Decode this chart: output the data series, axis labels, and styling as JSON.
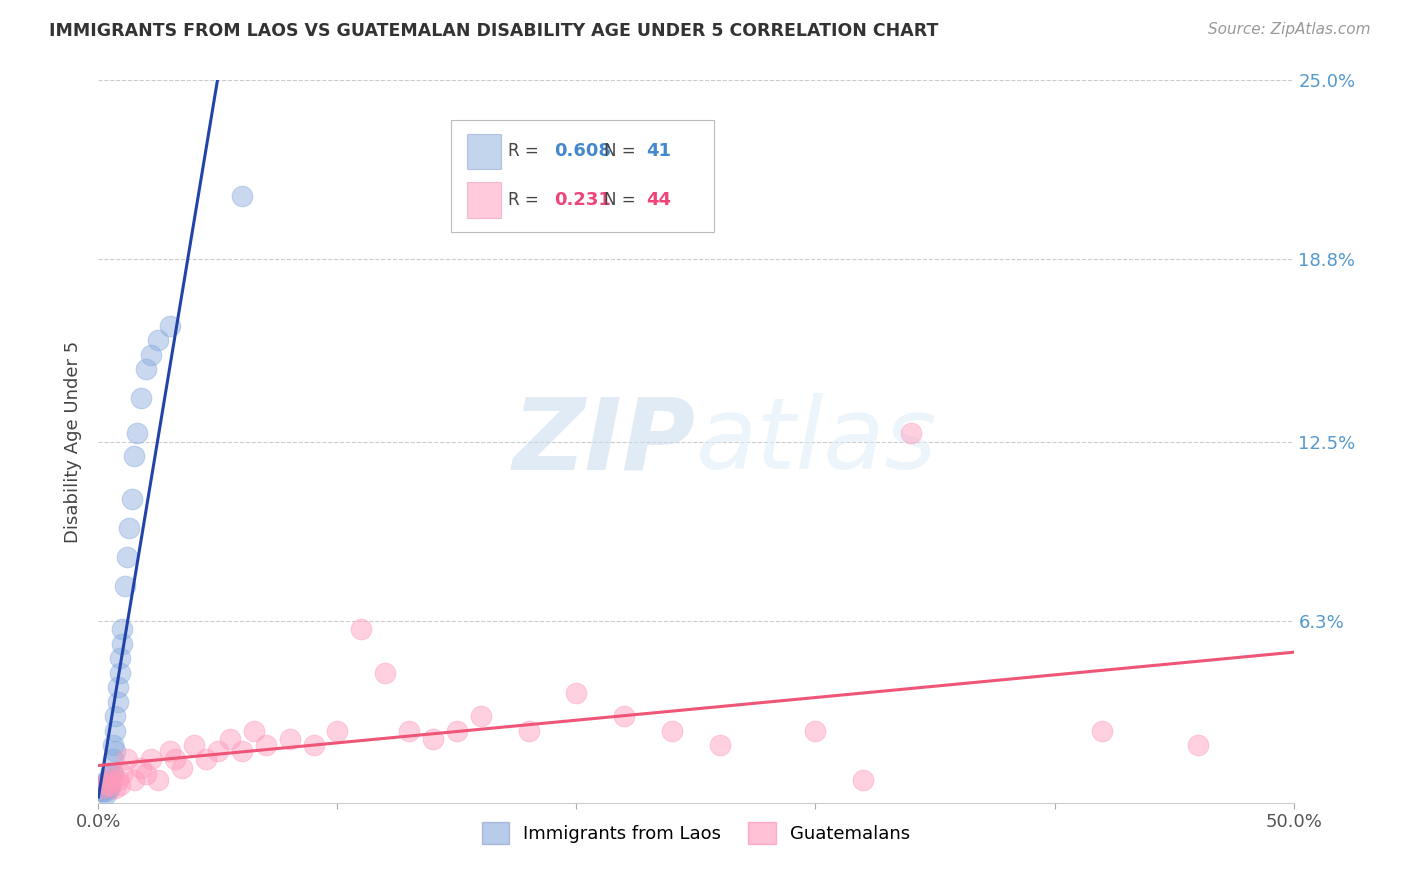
{
  "title": "IMMIGRANTS FROM LAOS VS GUATEMALAN DISABILITY AGE UNDER 5 CORRELATION CHART",
  "source": "Source: ZipAtlas.com",
  "ylabel": "Disability Age Under 5",
  "xlim": [
    0.0,
    0.5
  ],
  "ylim": [
    0.0,
    0.25
  ],
  "xtick_vals": [
    0.0,
    0.1,
    0.2,
    0.3,
    0.4,
    0.5
  ],
  "xtick_labels_shown": [
    "0.0%",
    "",
    "",
    "",
    "",
    "50.0%"
  ],
  "ytick_vals": [
    0.063,
    0.125,
    0.188,
    0.25
  ],
  "ytick_labels": [
    "6.3%",
    "12.5%",
    "18.8%",
    "25.0%"
  ],
  "legend_label1": "Immigrants from Laos",
  "legend_label2": "Guatemalans",
  "R1": "0.608",
  "N1": "41",
  "R2": "0.231",
  "N2": "44",
  "color_blue": "#88AADD",
  "color_pink": "#FF99BB",
  "color_blue_line": "#2244AA",
  "color_pink_line": "#EE5577",
  "background_color": "#FFFFFF",
  "laos_x": [
    0.001,
    0.001,
    0.002,
    0.002,
    0.002,
    0.002,
    0.003,
    0.003,
    0.003,
    0.003,
    0.004,
    0.004,
    0.004,
    0.005,
    0.005,
    0.005,
    0.005,
    0.006,
    0.006,
    0.006,
    0.007,
    0.007,
    0.007,
    0.008,
    0.008,
    0.009,
    0.009,
    0.01,
    0.01,
    0.011,
    0.012,
    0.013,
    0.014,
    0.015,
    0.016,
    0.018,
    0.02,
    0.022,
    0.025,
    0.03,
    0.06
  ],
  "laos_y": [
    0.005,
    0.004,
    0.006,
    0.005,
    0.007,
    0.004,
    0.005,
    0.006,
    0.004,
    0.003,
    0.008,
    0.007,
    0.005,
    0.01,
    0.008,
    0.006,
    0.005,
    0.02,
    0.015,
    0.01,
    0.03,
    0.025,
    0.018,
    0.04,
    0.035,
    0.05,
    0.045,
    0.06,
    0.055,
    0.075,
    0.085,
    0.095,
    0.105,
    0.12,
    0.128,
    0.14,
    0.15,
    0.155,
    0.16,
    0.165,
    0.21
  ],
  "guate_x": [
    0.002,
    0.003,
    0.004,
    0.005,
    0.006,
    0.007,
    0.008,
    0.009,
    0.01,
    0.012,
    0.015,
    0.018,
    0.02,
    0.022,
    0.025,
    0.03,
    0.032,
    0.035,
    0.04,
    0.045,
    0.05,
    0.055,
    0.06,
    0.065,
    0.07,
    0.08,
    0.09,
    0.1,
    0.11,
    0.12,
    0.13,
    0.14,
    0.15,
    0.16,
    0.18,
    0.2,
    0.22,
    0.24,
    0.26,
    0.3,
    0.32,
    0.34,
    0.42,
    0.46
  ],
  "guate_y": [
    0.005,
    0.007,
    0.006,
    0.008,
    0.01,
    0.005,
    0.008,
    0.006,
    0.01,
    0.015,
    0.008,
    0.012,
    0.01,
    0.015,
    0.008,
    0.018,
    0.015,
    0.012,
    0.02,
    0.015,
    0.018,
    0.022,
    0.018,
    0.025,
    0.02,
    0.022,
    0.02,
    0.025,
    0.06,
    0.045,
    0.025,
    0.022,
    0.025,
    0.03,
    0.025,
    0.038,
    0.03,
    0.025,
    0.02,
    0.025,
    0.008,
    0.128,
    0.025,
    0.02
  ]
}
